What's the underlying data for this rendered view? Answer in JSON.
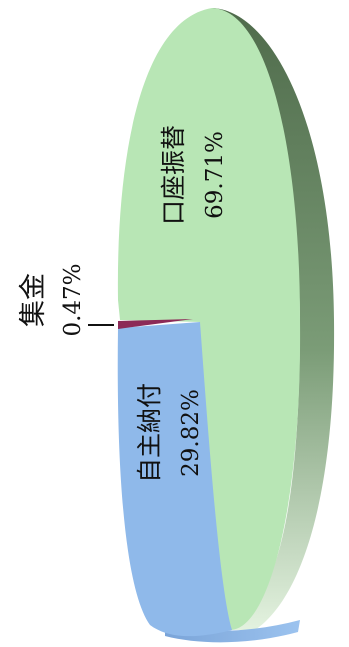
{
  "chart_data": {
    "type": "pie",
    "title": "",
    "slices": [
      {
        "label": "口座振替",
        "percent_text": "69.71%",
        "value": 69.71,
        "color": "#b8e6b5",
        "side_color": "#5e7f59"
      },
      {
        "label": "自主納付",
        "percent_text": "29.82%",
        "value": 29.82,
        "color": "#8fb9ea",
        "side_color": "#7fa6d8"
      },
      {
        "label": "集金",
        "percent_text": "0.47%",
        "value": 0.47,
        "color": "#8c2a57",
        "side_color": "#6d1f43"
      }
    ],
    "legend": "none",
    "style": "3d-exploded-rotated"
  }
}
